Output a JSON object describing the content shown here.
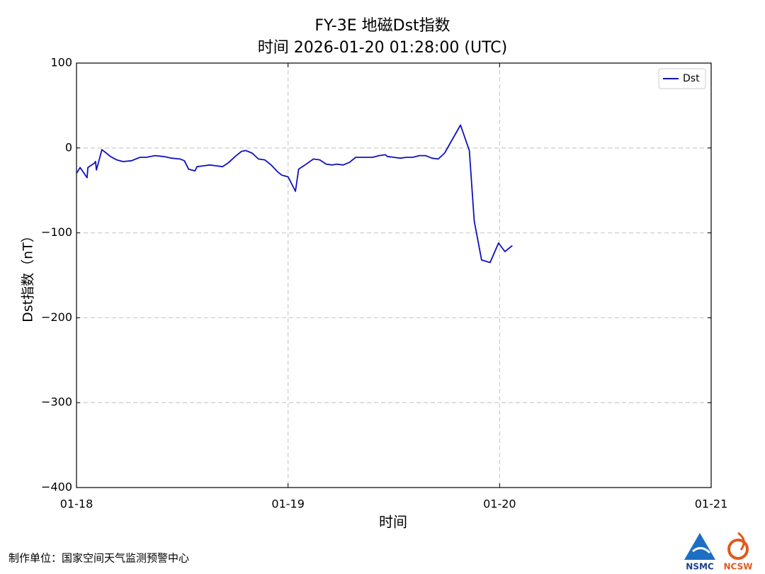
{
  "chart_data": {
    "type": "line",
    "title": "FY-3E 地磁Dst指数",
    "subtitle": "时间 2026-01-20 01:28:00 (UTC)",
    "x_label": "时间",
    "y_label": "Dst指数（nT）",
    "x": [
      0.0,
      0.017,
      0.05,
      0.054,
      0.084,
      0.09,
      0.094,
      0.107,
      0.12,
      0.141,
      0.16,
      0.19,
      0.22,
      0.26,
      0.3,
      0.33,
      0.37,
      0.41,
      0.45,
      0.49,
      0.51,
      0.53,
      0.56,
      0.57,
      0.6,
      0.63,
      0.66,
      0.69,
      0.72,
      0.75,
      0.78,
      0.8,
      0.83,
      0.86,
      0.89,
      0.92,
      0.95,
      0.97,
      1.0,
      1.035,
      1.05,
      1.08,
      1.12,
      1.15,
      1.18,
      1.21,
      1.23,
      1.26,
      1.29,
      1.32,
      1.36,
      1.4,
      1.43,
      1.46,
      1.47,
      1.5,
      1.53,
      1.56,
      1.59,
      1.62,
      1.65,
      1.68,
      1.71,
      1.74,
      1.815,
      1.857,
      1.88,
      1.915,
      1.955,
      1.995,
      2.025,
      2.06
    ],
    "series": [
      {
        "name": "Dst",
        "color": "#1010c0",
        "values": [
          -30,
          -23,
          -35,
          -23,
          -18,
          -16,
          -26,
          -14,
          -2,
          -6,
          -10,
          -14,
          -16,
          -15,
          -11,
          -11,
          -9,
          -10,
          -12,
          -13,
          -15,
          -25,
          -27,
          -22,
          -21,
          -20,
          -21,
          -22,
          -17,
          -10,
          -4,
          -3,
          -6,
          -13,
          -14,
          -20,
          -28,
          -32,
          -34,
          -51,
          -25,
          -20,
          -13,
          -14,
          -19,
          -20,
          -19,
          -20,
          -17,
          -11,
          -11,
          -11,
          -9,
          -8,
          -10,
          -11,
          -12,
          -11,
          -11,
          -9,
          -9,
          -12,
          -13,
          -6,
          27,
          -3,
          -86,
          -132,
          -135,
          -112,
          -122,
          -115
        ]
      }
    ],
    "xlim": [
      0,
      3
    ],
    "xticks": [
      {
        "value": 0,
        "label": "01-18"
      },
      {
        "value": 1,
        "label": "01-19"
      },
      {
        "value": 2,
        "label": "01-20"
      },
      {
        "value": 3,
        "label": "01-21"
      }
    ],
    "ylim": [
      -400,
      100
    ],
    "yticks": [
      {
        "value": -400,
        "label": "−400"
      },
      {
        "value": -300,
        "label": "−300"
      },
      {
        "value": -200,
        "label": "−200"
      },
      {
        "value": -100,
        "label": "−100"
      },
      0,
      100
    ],
    "grid": true,
    "legend": "upper right"
  },
  "footer": {
    "credit": "制作单位：国家空间天气监测预警中心",
    "logo_left": "NSMC",
    "logo_right": "NCSW"
  }
}
